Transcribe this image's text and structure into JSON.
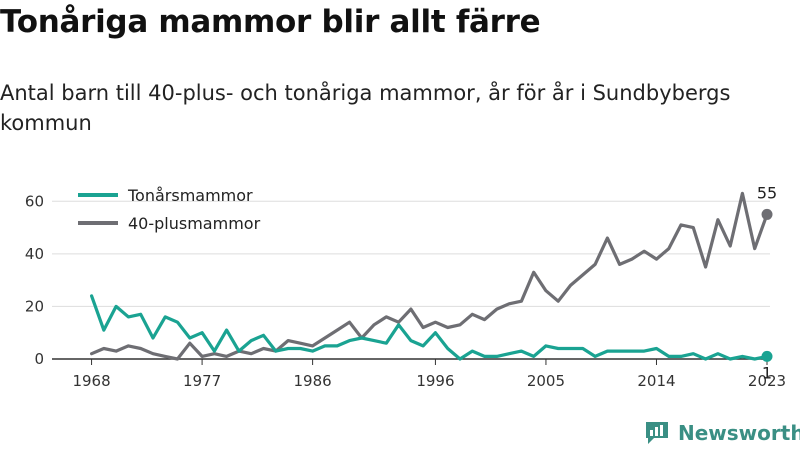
{
  "title": "Tonåriga mammor blir allt färre",
  "subtitle": "Antal barn till 40-plus- och tonåriga mammor, år för år i Sundbybergs kommun",
  "brand": "Newsworthy",
  "colors": {
    "teen": "#1aa392",
    "forty": "#6e6e73",
    "grid": "#dddddd",
    "axis": "#333333"
  },
  "chart_data": {
    "type": "line",
    "xlim": [
      1966,
      2023
    ],
    "ylim": [
      0,
      70
    ],
    "yticks": [
      0,
      20,
      40,
      60
    ],
    "xticks": [
      1968,
      1977,
      1986,
      1996,
      2005,
      2014,
      2023
    ],
    "legend_position": "top-left",
    "series": [
      {
        "name": "Tonårsmammor",
        "color": "#1aa392",
        "x": [
          1968,
          1969,
          1970,
          1971,
          1972,
          1973,
          1974,
          1975,
          1976,
          1977,
          1978,
          1979,
          1980,
          1981,
          1982,
          1983,
          1984,
          1985,
          1986,
          1987,
          1988,
          1989,
          1990,
          1991,
          1992,
          1993,
          1994,
          1995,
          1996,
          1997,
          1998,
          1999,
          2000,
          2001,
          2002,
          2003,
          2004,
          2005,
          2006,
          2007,
          2008,
          2009,
          2010,
          2011,
          2012,
          2013,
          2014,
          2015,
          2016,
          2017,
          2018,
          2019,
          2020,
          2021,
          2022,
          2023
        ],
        "y": [
          24,
          11,
          20,
          16,
          17,
          8,
          16,
          14,
          8,
          10,
          3,
          11,
          3,
          7,
          9,
          3,
          4,
          4,
          3,
          5,
          5,
          7,
          8,
          7,
          6,
          13,
          7,
          5,
          10,
          4,
          0,
          3,
          1,
          1,
          2,
          3,
          1,
          5,
          4,
          4,
          4,
          1,
          3,
          3,
          3,
          3,
          4,
          1,
          1,
          2,
          0,
          2,
          0,
          1,
          0,
          1
        ],
        "end_label": "1"
      },
      {
        "name": "40-plusmammor",
        "color": "#6e6e73",
        "x": [
          1968,
          1969,
          1970,
          1971,
          1972,
          1973,
          1974,
          1975,
          1976,
          1977,
          1978,
          1979,
          1980,
          1981,
          1982,
          1983,
          1984,
          1985,
          1986,
          1987,
          1988,
          1989,
          1990,
          1991,
          1992,
          1993,
          1994,
          1995,
          1996,
          1997,
          1998,
          1999,
          2000,
          2001,
          2002,
          2003,
          2004,
          2005,
          2006,
          2007,
          2008,
          2009,
          2010,
          2011,
          2012,
          2013,
          2014,
          2015,
          2016,
          2017,
          2018,
          2019,
          2020,
          2021,
          2022,
          2023
        ],
        "y": [
          2,
          4,
          3,
          5,
          4,
          2,
          1,
          0,
          6,
          1,
          2,
          1,
          3,
          2,
          4,
          3,
          7,
          6,
          5,
          8,
          11,
          14,
          8,
          13,
          16,
          14,
          19,
          12,
          14,
          12,
          13,
          17,
          15,
          19,
          21,
          22,
          33,
          26,
          22,
          28,
          32,
          36,
          46,
          36,
          38,
          41,
          38,
          42,
          51,
          50,
          35,
          53,
          43,
          63,
          42,
          55
        ],
        "end_label": "55"
      }
    ]
  }
}
